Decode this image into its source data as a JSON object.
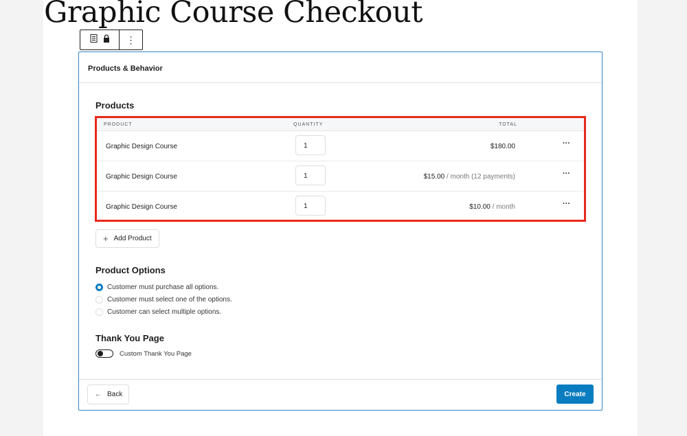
{
  "page": {
    "title": "Graphic Course Checkout"
  },
  "toolbar": {
    "icons": [
      "form-icon",
      "lock-icon",
      "more-vertical-icon"
    ],
    "more": "⋮"
  },
  "card": {
    "header": "Products & Behavior",
    "products": {
      "heading": "Products",
      "columns": [
        "PRODUCT",
        "QUANTITY",
        "TOTAL"
      ],
      "rows": [
        {
          "name": "Graphic Design Course",
          "quantity": "1",
          "price": "$180.00",
          "suffix": "",
          "more": "···"
        },
        {
          "name": "Graphic Design Course",
          "quantity": "1",
          "price": "$15.00",
          "suffix": " / month (12 payments)",
          "more": "···"
        },
        {
          "name": "Graphic Design Course",
          "quantity": "1",
          "price": "$10.00",
          "suffix": " / month",
          "more": "···"
        }
      ],
      "add_label": "Add Product",
      "add_icon": "+"
    },
    "options": {
      "heading": "Product Options",
      "items": [
        "Customer must purchase all options.",
        "Customer must select one of the options.",
        "Customer can select multiple options."
      ],
      "selected": 0
    },
    "thankyou": {
      "heading": "Thank You Page",
      "toggle_label": "Custom Thank You Page",
      "toggle_on": false
    },
    "back_label": "Back",
    "back_icon": "←",
    "create_label": "Create"
  },
  "colors": {
    "accent": "#0a7cc0",
    "highlight": "#e8281a",
    "card_border": "#3582c4"
  }
}
